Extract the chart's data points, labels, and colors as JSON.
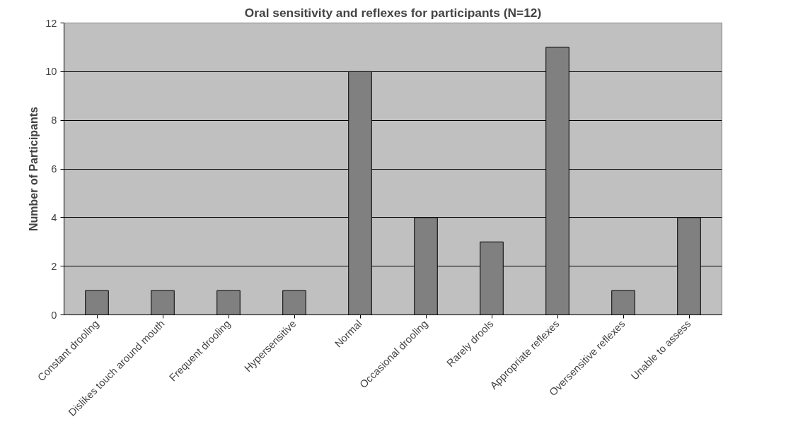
{
  "chart_data": {
    "type": "bar",
    "title": "Oral sensitivity and reflexes for participants (N=12)",
    "ylabel": "Number of Participants",
    "categories": [
      "Constant drooling",
      "Dislikes touch around mouth",
      "Frequent drooling",
      "Hypersensitive",
      "Normal",
      "Occasional drooling",
      "Rarely drools",
      "Appropriate reflexes",
      "Oversensitive reflexes",
      "Unable to assess"
    ],
    "values": [
      1,
      1,
      1,
      1,
      10,
      4,
      3,
      11,
      1,
      4
    ],
    "color": "#808080",
    "ylim": [
      0,
      12
    ],
    "yticks": [
      0,
      2,
      4,
      6,
      8,
      10,
      12
    ],
    "grid": "y"
  }
}
